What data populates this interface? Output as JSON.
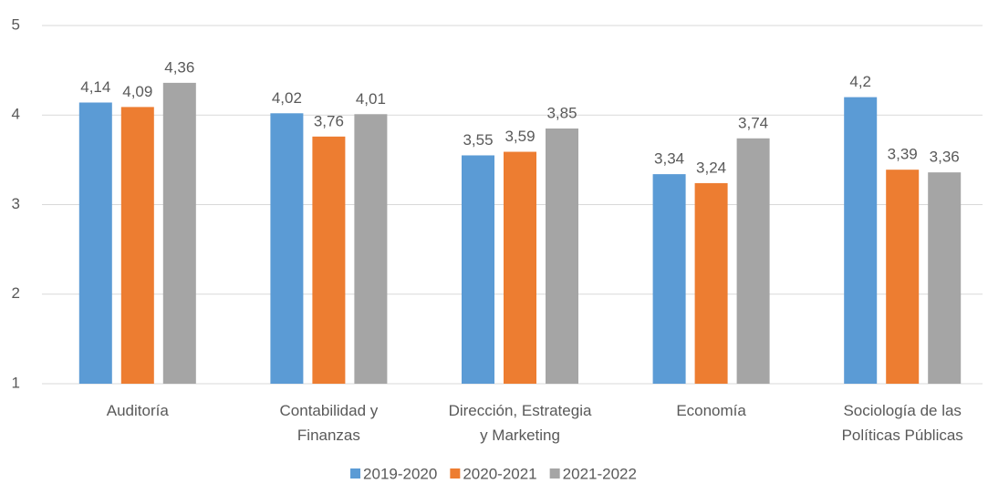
{
  "chart_data": {
    "type": "bar",
    "categories": [
      "Auditoría",
      "Contabilidad y Finanzas",
      "Dirección, Estrategia y Marketing",
      "Economía",
      "Sociología de las Políticas Públicas"
    ],
    "series": [
      {
        "name": "2019-2020",
        "color": "#5b9bd5",
        "values": [
          4.14,
          4.02,
          3.55,
          3.34,
          4.2
        ],
        "value_labels": [
          "4,14",
          "4,02",
          "3,55",
          "3,34",
          "4,2"
        ]
      },
      {
        "name": "2020-2021",
        "color": "#ed7d31",
        "values": [
          4.09,
          3.76,
          3.59,
          3.24,
          3.39
        ],
        "value_labels": [
          "4,09",
          "3,76",
          "3,59",
          "3,24",
          "3,39"
        ]
      },
      {
        "name": "2021-2022",
        "color": "#a5a5a5",
        "values": [
          4.36,
          4.01,
          3.85,
          3.74,
          3.36
        ],
        "value_labels": [
          "4,36",
          "4,01",
          "3,85",
          "3,74",
          "3,36"
        ]
      }
    ],
    "ylim": [
      1,
      5
    ],
    "yticks": [
      1,
      2,
      3,
      4,
      5
    ],
    "grid": true,
    "legend": "bottom"
  }
}
